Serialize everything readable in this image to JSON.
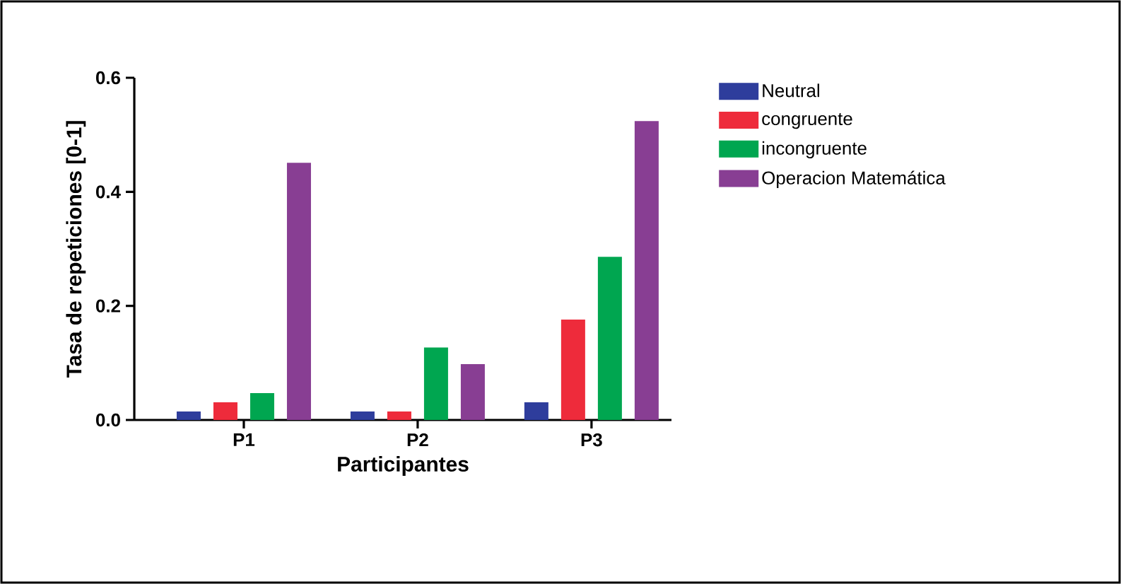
{
  "chart_data": {
    "type": "bar",
    "xlabel": "Participantes",
    "ylabel": "Tasa de repeticiones [0-1]",
    "categories": [
      "P1",
      "P2",
      "P3"
    ],
    "series": [
      {
        "name": "Neutral",
        "color": "#2e3d9c",
        "values": [
          0.015,
          0.015,
          0.031
        ]
      },
      {
        "name": "congruente",
        "color": "#ee2b3b",
        "values": [
          0.031,
          0.015,
          0.176
        ]
      },
      {
        "name": "incongruente",
        "color": "#00a650",
        "values": [
          0.047,
          0.127,
          0.286
        ]
      },
      {
        "name": "Operacion Matemática",
        "color": "#883e93",
        "values": [
          0.451,
          0.098,
          0.524
        ]
      }
    ],
    "ylim": [
      0,
      0.6
    ],
    "yticks": [
      {
        "value": 0,
        "label": "0.0"
      },
      {
        "value": 0.2,
        "label": "0.2"
      },
      {
        "value": 0.4,
        "label": "0.4"
      },
      {
        "value": 0.6,
        "label": "0.6"
      }
    ],
    "grid": false,
    "legend": "top right"
  }
}
